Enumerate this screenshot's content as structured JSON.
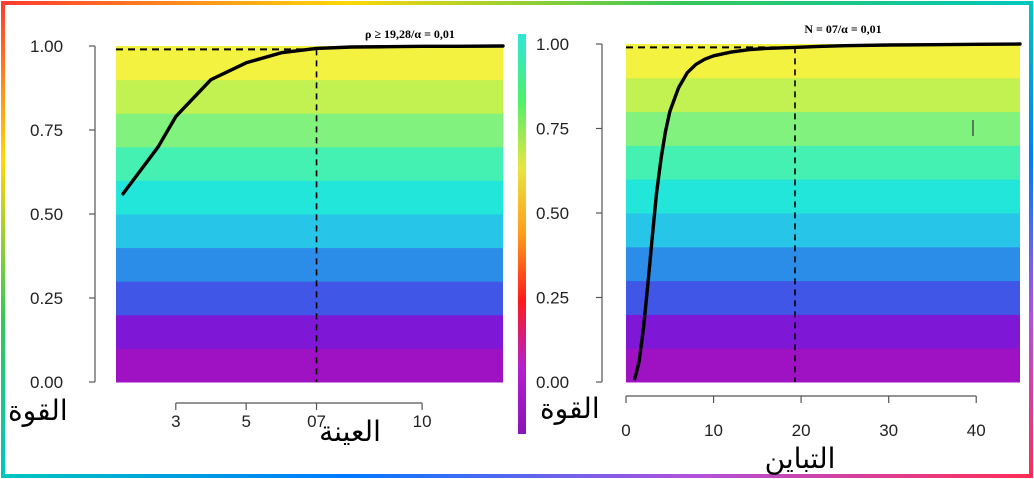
{
  "frame_gradient": [
    "#ff3b30",
    "#ffd60a",
    "#34c759",
    "#00c7be",
    "#007aff",
    "#af52de",
    "#ff2d55"
  ],
  "chart_data": [
    {
      "type": "line",
      "xlabel": "العينة",
      "ylabel": "القوة",
      "annotation": "ρ ≥ 19,28/α = 0,01",
      "x_ticks": [
        3,
        5,
        "07",
        10
      ],
      "y_ticks": [
        "0.00",
        "0.25",
        "0.50",
        "0.75",
        "1.00"
      ],
      "xlim": [
        1.3,
        12.3
      ],
      "ylim": [
        0,
        1
      ],
      "x": [
        1.5,
        2.5,
        3,
        4,
        5,
        6,
        7,
        8,
        9,
        10,
        11,
        12.3
      ],
      "y": [
        0.56,
        0.7,
        0.79,
        0.9,
        0.95,
        0.98,
        0.993,
        0.997,
        0.998,
        0.999,
        0.999,
        1.0
      ],
      "reference_y": 0.99,
      "reference_x": 7,
      "background_bands": [
        "#9e12c4",
        "#7e18d6",
        "#3f56e6",
        "#2c8de8",
        "#27c6e8",
        "#22e6d9",
        "#44f0b2",
        "#80f27d",
        "#c2f252",
        "#f4f241"
      ]
    },
    {
      "type": "line",
      "xlabel": "التباين",
      "ylabel": "القوة",
      "annotation": "N = 07/α = 0,01",
      "x_ticks": [
        0,
        10,
        20,
        30,
        40
      ],
      "y_ticks": [
        "0.00",
        "0.25",
        "0.50",
        "0.75",
        "1.00"
      ],
      "xlim": [
        0,
        45
      ],
      "ylim": [
        0,
        1
      ],
      "x": [
        1,
        1.5,
        2,
        2.5,
        3,
        3.5,
        4,
        4.5,
        5,
        6,
        7,
        8,
        9,
        10,
        12,
        14,
        16,
        19.3,
        22,
        25,
        30,
        35,
        40,
        45
      ],
      "y": [
        0.01,
        0.06,
        0.16,
        0.29,
        0.43,
        0.56,
        0.66,
        0.74,
        0.8,
        0.87,
        0.915,
        0.94,
        0.955,
        0.965,
        0.976,
        0.983,
        0.987,
        0.99,
        0.993,
        0.995,
        0.997,
        0.998,
        0.999,
        1.0
      ],
      "reference_y": 0.99,
      "reference_x": 19.3,
      "background_bands": [
        "#9e12c4",
        "#7e18d6",
        "#3f56e6",
        "#2c8de8",
        "#27c6e8",
        "#22e6d9",
        "#44f0b2",
        "#80f27d",
        "#c2f252",
        "#f4f241"
      ]
    }
  ],
  "colorbar_colors": [
    "#2ee6d6",
    "#4ff06a",
    "#e8e640",
    "#ff9d1a",
    "#ff1a1a",
    "#b420d0",
    "#8a15b8"
  ]
}
